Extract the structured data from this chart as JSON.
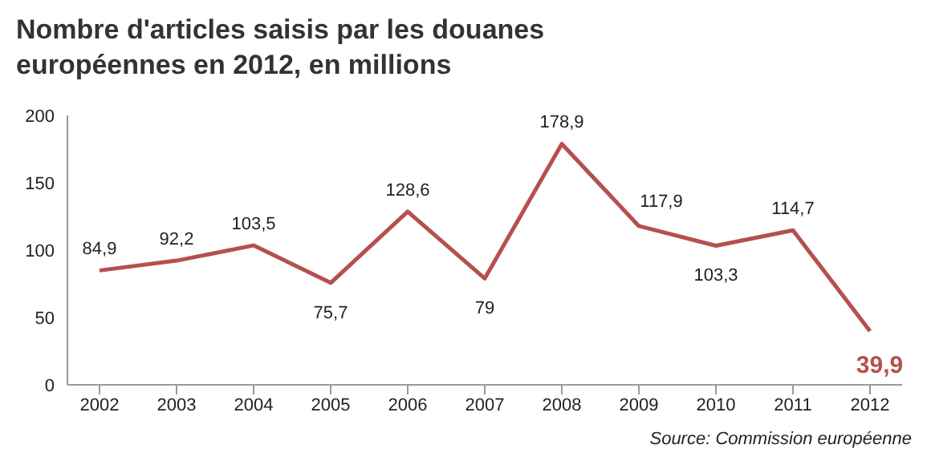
{
  "chart_data": {
    "type": "line",
    "title": "Nombre d'articles saisis par les douanes européennes en 2012, en millions",
    "categories": [
      "2002",
      "2003",
      "2004",
      "2005",
      "2006",
      "2007",
      "2008",
      "2009",
      "2010",
      "2011",
      "2012"
    ],
    "series": [
      {
        "color": "#b5504d",
        "values": [
          84.9,
          92.2,
          103.5,
          75.7,
          128.6,
          79,
          178.9,
          117.9,
          103.3,
          114.7,
          39.9
        ],
        "value_labels": [
          "84,9",
          "92,2",
          "103,5",
          "75,7",
          "128,6",
          "79",
          "178,9",
          "117,9",
          "103,3",
          "114,7",
          "39,9"
        ]
      }
    ],
    "ylim": [
      0,
      200
    ],
    "yticks": [
      0,
      50,
      100,
      150,
      200
    ],
    "grid": false,
    "legend": false,
    "marker": "none",
    "line_style": "solid",
    "annotations": [
      "Source: Commission européenne"
    ]
  }
}
